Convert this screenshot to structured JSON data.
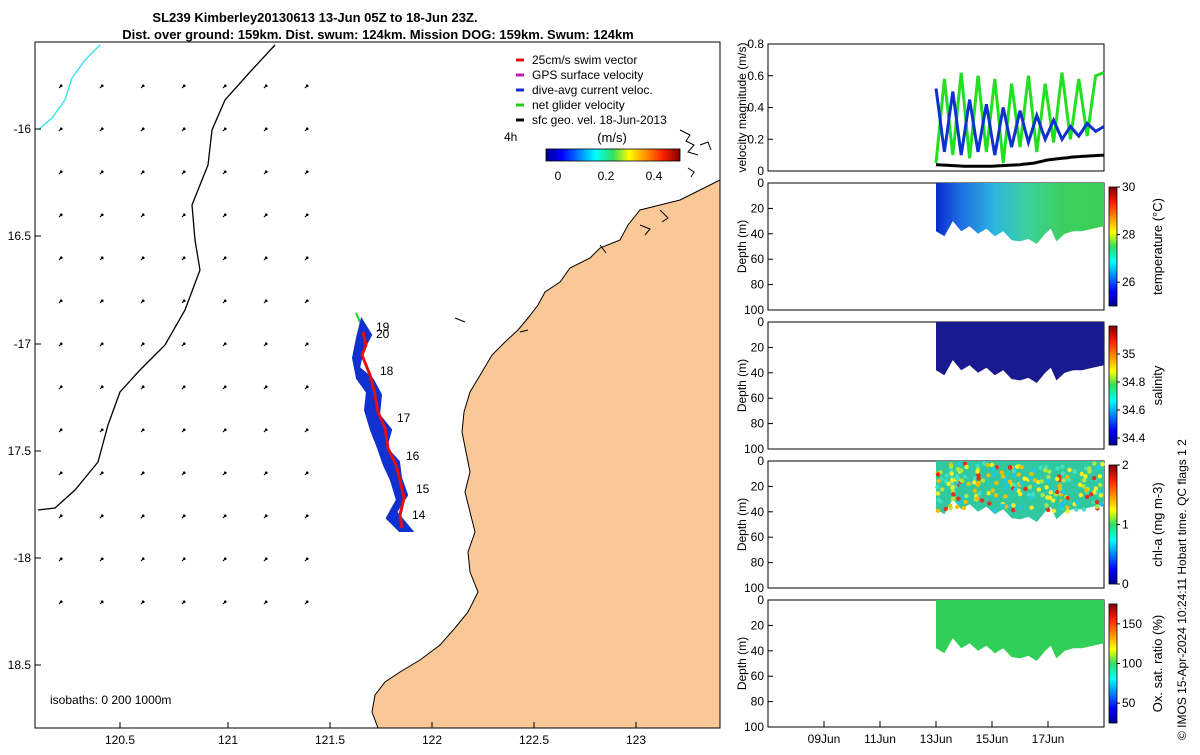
{
  "header": {
    "line1": "SL239 Kimberley20130613 13-Jun 05Z to 18-Jun 23Z.",
    "line2": "Dist. over ground: 159km. Dist. swum: 124km. Mission DOG: 159km. Swum: 124km"
  },
  "map": {
    "lon_ticks": [
      "120.5",
      "121",
      "121.5",
      "122",
      "122.5",
      "123"
    ],
    "lat_ticks": [
      "-16",
      "16.5",
      "-17",
      "17.5",
      "-18",
      "18.5"
    ],
    "isobaths_label": "isobaths: 0   200   1000m",
    "legend": [
      {
        "label": "25cm/s swim vector",
        "color": "#e01010"
      },
      {
        "label": "GPS surface velocity",
        "color": "#c020c0"
      },
      {
        "label": "dive-avg current veloc.",
        "color": "#1030d0"
      },
      {
        "label": "net glider velocity",
        "color": "#20d020"
      },
      {
        "label": "sfc geo. vel. 18-Jun-2013",
        "color": "#000000"
      }
    ],
    "vector_scale_label": "4h",
    "colorbar_title": "(m/s)",
    "colorbar_ticks": [
      "0",
      "0.2",
      "0.4"
    ],
    "day_labels": [
      "19",
      "20",
      "18",
      "17",
      "16",
      "15",
      "14"
    ],
    "land_color": "#f9c896"
  },
  "copyright": "© IMOS 15-Apr-2024 10:24:11 Hobart time. QC flags 1  2",
  "time_axis": {
    "tick_labels": [
      "09Jun",
      "11Jun",
      "13Jun",
      "15Jun",
      "17Jun"
    ]
  },
  "chart_data": [
    {
      "type": "line",
      "ylabel": "velocity magnitude (m/s)",
      "ylim": [
        0,
        0.8
      ],
      "yticks": [
        "0",
        "0.2",
        "0.4",
        "0.6",
        "0.8"
      ],
      "series": [
        {
          "color": "#20e020",
          "x": [
            13.0,
            13.3,
            13.6,
            13.9,
            14.2,
            14.5,
            14.8,
            15.1,
            15.4,
            15.7,
            16.0,
            16.3,
            16.6,
            16.9,
            17.2,
            17.5,
            17.8,
            18.1,
            18.4,
            18.7,
            19.0
          ],
          "values": [
            0.05,
            0.58,
            0.1,
            0.62,
            0.08,
            0.6,
            0.12,
            0.58,
            0.05,
            0.55,
            0.15,
            0.6,
            0.12,
            0.55,
            0.18,
            0.62,
            0.2,
            0.58,
            0.22,
            0.6,
            0.62
          ]
        },
        {
          "color": "#1030d0",
          "x": [
            13.0,
            13.3,
            13.6,
            13.9,
            14.2,
            14.5,
            14.8,
            15.1,
            15.4,
            15.7,
            16.0,
            16.3,
            16.6,
            16.9,
            17.2,
            17.5,
            17.8,
            18.1,
            18.4,
            18.7,
            19.0
          ],
          "values": [
            0.52,
            0.12,
            0.5,
            0.1,
            0.45,
            0.12,
            0.42,
            0.1,
            0.4,
            0.15,
            0.38,
            0.18,
            0.35,
            0.2,
            0.32,
            0.2,
            0.28,
            0.22,
            0.3,
            0.25,
            0.28
          ]
        },
        {
          "color": "#000000",
          "x": [
            13.0,
            14.0,
            15.0,
            16.0,
            16.5,
            17.0,
            17.5,
            18.0,
            18.5,
            19.0
          ],
          "values": [
            0.04,
            0.03,
            0.03,
            0.04,
            0.05,
            0.07,
            0.08,
            0.09,
            0.095,
            0.1
          ]
        }
      ]
    },
    {
      "type": "heatmap",
      "ylabel": "Depth (m)",
      "clabel": "temperature (°C)",
      "clim": [
        25,
        30
      ],
      "cticks": [
        "26",
        "28",
        "30"
      ],
      "ylim": [
        100,
        0
      ],
      "yticks": [
        "20",
        "40",
        "60",
        "80",
        "100"
      ],
      "x": [
        13.0,
        14.0,
        15.0,
        16.0,
        17.0,
        18.0,
        19.0
      ],
      "values": [
        25.6,
        26.2,
        27.4,
        28.2,
        28.4,
        28.5,
        28.5
      ]
    },
    {
      "type": "heatmap",
      "ylabel": "Depth (m)",
      "clabel": "salinity",
      "clim": [
        34.35,
        35.2
      ],
      "cticks": [
        "34.4",
        "34.6",
        "34.8",
        "35"
      ],
      "ylim": [
        100,
        0
      ],
      "yticks": [
        "20",
        "40",
        "60",
        "80",
        "100"
      ],
      "x": [
        13.0,
        14.0,
        15.0,
        16.0,
        17.0,
        18.0,
        19.0
      ],
      "values": [
        34.37,
        34.37,
        34.38,
        34.38,
        34.38,
        34.39,
        34.39
      ]
    },
    {
      "type": "heatmap",
      "ylabel": "Depth (m)",
      "clabel": "chl-a (mg m-3)",
      "clim": [
        0,
        2
      ],
      "cticks": [
        "0",
        "1",
        "2"
      ],
      "ylim": [
        100,
        0
      ],
      "yticks": [
        "20",
        "40",
        "60",
        "80",
        "100"
      ],
      "x": [
        13.0,
        14.0,
        15.0,
        16.0,
        17.0,
        18.0,
        19.0
      ],
      "values": [
        1.1,
        1.25,
        1.3,
        1.25,
        1.2,
        1.15,
        1.1
      ]
    },
    {
      "type": "heatmap",
      "ylabel": "Depth (m)",
      "clabel": "Ox. sat. ratio (%)",
      "clim": [
        25,
        175
      ],
      "cticks": [
        "50",
        "100",
        "150"
      ],
      "ylim": [
        100,
        0
      ],
      "yticks": [
        "20",
        "40",
        "60",
        "80",
        "100"
      ],
      "x": [
        13.0,
        14.0,
        15.0,
        16.0,
        17.0,
        18.0,
        19.0
      ],
      "values": [
        105,
        106,
        105,
        104,
        104,
        103,
        104
      ]
    }
  ]
}
